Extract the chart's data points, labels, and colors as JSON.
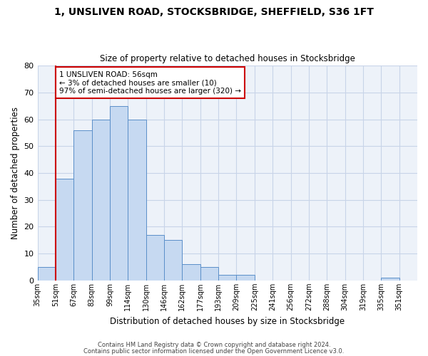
{
  "title": "1, UNSLIVEN ROAD, STOCKSBRIDGE, SHEFFIELD, S36 1FT",
  "subtitle": "Size of property relative to detached houses in Stocksbridge",
  "xlabel": "Distribution of detached houses by size in Stocksbridge",
  "ylabel": "Number of detached properties",
  "bin_labels": [
    "35sqm",
    "51sqm",
    "67sqm",
    "83sqm",
    "99sqm",
    "114sqm",
    "130sqm",
    "146sqm",
    "162sqm",
    "177sqm",
    "193sqm",
    "209sqm",
    "225sqm",
    "241sqm",
    "256sqm",
    "272sqm",
    "288sqm",
    "304sqm",
    "319sqm",
    "335sqm",
    "351sqm"
  ],
  "bar_heights": [
    5,
    38,
    56,
    60,
    65,
    60,
    17,
    15,
    6,
    5,
    2,
    2,
    0,
    0,
    0,
    0,
    0,
    0,
    0,
    1,
    0
  ],
  "bar_color": "#c6d9f1",
  "bar_edge_color": "#5b8fc9",
  "ylim": [
    0,
    80
  ],
  "yticks": [
    0,
    10,
    20,
    30,
    40,
    50,
    60,
    70,
    80
  ],
  "vline_x": 1,
  "vline_color": "#cc0000",
  "annotation_text": "1 UNSLIVEN ROAD: 56sqm\n← 3% of detached houses are smaller (10)\n97% of semi-detached houses are larger (320) →",
  "annotation_box_color": "#ffffff",
  "annotation_box_edge": "#cc0000",
  "footer_line1": "Contains HM Land Registry data © Crown copyright and database right 2024.",
  "footer_line2": "Contains public sector information licensed under the Open Government Licence v3.0.",
  "grid_color": "#c8d4e8",
  "background_color": "#edf2f9"
}
